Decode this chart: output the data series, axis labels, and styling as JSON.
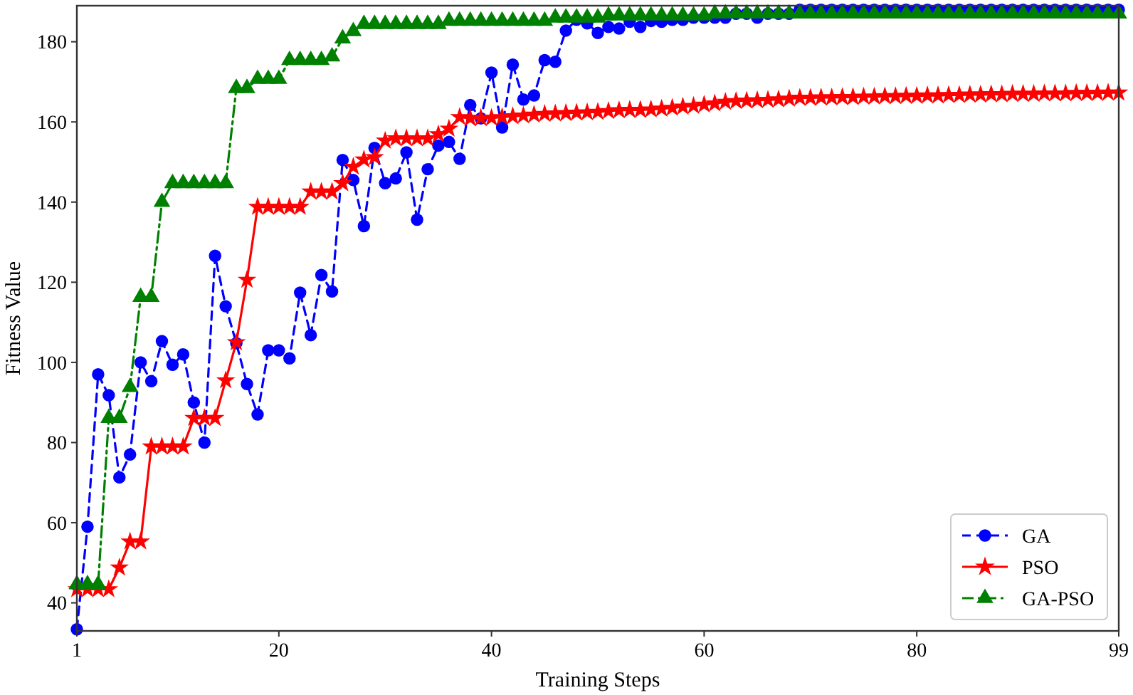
{
  "chart_data": {
    "type": "line",
    "xlabel": "Training Steps",
    "ylabel": "Fitness Value",
    "x": [
      1,
      2,
      3,
      4,
      5,
      6,
      7,
      8,
      9,
      10,
      11,
      12,
      13,
      14,
      15,
      16,
      17,
      18,
      19,
      20,
      21,
      22,
      23,
      24,
      25,
      26,
      27,
      28,
      29,
      30,
      31,
      32,
      33,
      34,
      35,
      36,
      37,
      38,
      39,
      40,
      41,
      42,
      43,
      44,
      45,
      46,
      47,
      48,
      49,
      50,
      51,
      52,
      53,
      54,
      55,
      56,
      57,
      58,
      59,
      60,
      61,
      62,
      63,
      64,
      65,
      66,
      67,
      68,
      69,
      70,
      71,
      72,
      73,
      74,
      75,
      76,
      77,
      78,
      79,
      80,
      81,
      82,
      83,
      84,
      85,
      86,
      87,
      88,
      89,
      90,
      91,
      92,
      93,
      94,
      95,
      96,
      97,
      98,
      99
    ],
    "series": [
      {
        "name": "GA",
        "color": "#0000ff",
        "marker": "circle",
        "line_style": "dashed",
        "values": [
          33.4,
          59,
          97,
          91.8,
          71.3,
          77,
          100,
          95.3,
          105.3,
          99.4,
          102,
          90,
          80,
          126.6,
          114,
          104.8,
          94.6,
          87,
          103,
          103,
          101,
          117.4,
          106.8,
          121.8,
          117.7,
          150.5,
          145.5,
          134,
          153.5,
          144.7,
          145.9,
          152.4,
          135.6,
          148.2,
          154.1,
          155,
          150.8,
          164.2,
          160.9,
          172.3,
          158.6,
          174.3,
          165.6,
          166.6,
          175.4,
          175,
          182.8,
          185.5,
          184.6,
          182.2,
          183.7,
          183.3,
          185,
          183.7,
          185.2,
          185,
          185.5,
          185.5,
          186,
          186,
          186,
          186,
          187,
          187,
          186,
          187,
          187,
          187,
          188,
          188,
          188,
          188,
          188,
          188,
          188,
          188,
          188,
          188,
          188,
          188,
          188,
          188,
          188,
          188,
          188,
          188,
          188,
          188,
          188,
          188,
          188,
          188,
          188,
          188,
          188,
          188,
          188,
          188,
          188
        ]
      },
      {
        "name": "PSO",
        "color": "#ff0000",
        "marker": "star",
        "line_style": "solid",
        "values": [
          43.4,
          43.4,
          43.4,
          43.4,
          48.8,
          55.3,
          55.3,
          79,
          79,
          79,
          79,
          86.1,
          86.1,
          86.1,
          95.5,
          105,
          120.6,
          138.8,
          138.8,
          138.8,
          138.8,
          138.8,
          142.6,
          142.6,
          142.6,
          144.7,
          148.8,
          150.6,
          151.2,
          155.3,
          155.9,
          155.9,
          155.9,
          155.9,
          156.9,
          158.3,
          161.2,
          160.9,
          161,
          161,
          161.2,
          161.4,
          161.6,
          161.8,
          162,
          162.1,
          162.2,
          162.3,
          162.4,
          162.5,
          162.7,
          162.9,
          163,
          163,
          163.1,
          163.3,
          163.5,
          163.8,
          164,
          164.3,
          164.6,
          165,
          165.2,
          165.3,
          165.4,
          165.5,
          165.6,
          165.8,
          166,
          166,
          166.1,
          166.1,
          166.2,
          166.2,
          166.3,
          166.3,
          166.4,
          166.4,
          166.5,
          166.5,
          166.6,
          166.6,
          166.7,
          166.7,
          166.8,
          166.8,
          166.9,
          166.9,
          167,
          167,
          167,
          167.1,
          167.1,
          167.1,
          167.2,
          167.2,
          167.2,
          167.3,
          167.3
        ]
      },
      {
        "name": "GA-PSO",
        "color": "#008000",
        "marker": "triangle",
        "line_style": "dashdot",
        "values": [
          44.6,
          44.6,
          44.6,
          86.1,
          86.1,
          93.8,
          116.3,
          116.3,
          140,
          144.7,
          144.7,
          144.7,
          144.7,
          144.7,
          144.7,
          168.4,
          168.4,
          170.7,
          170.7,
          170.7,
          175.4,
          175.4,
          175.4,
          175.4,
          176.3,
          180.8,
          182.6,
          184.4,
          184.4,
          184.4,
          184.4,
          184.4,
          184.4,
          184.4,
          184.4,
          185.2,
          185.2,
          185.2,
          185.2,
          185.2,
          185.2,
          185.2,
          185.2,
          185.2,
          185.2,
          186,
          186,
          186,
          186,
          186,
          186.5,
          186.5,
          186.5,
          186.5,
          186.5,
          186.5,
          186.5,
          186.5,
          186.5,
          186.5,
          187,
          187,
          187,
          187,
          187,
          187,
          187,
          187,
          187,
          187,
          187,
          187,
          187,
          187,
          187,
          187,
          187,
          187,
          187,
          187,
          187,
          187,
          187,
          187,
          187,
          187,
          187,
          187,
          187,
          187,
          187,
          187,
          187,
          187,
          187,
          187,
          187,
          187,
          187
        ]
      }
    ],
    "xlim": [
      1,
      99
    ],
    "xticks": [
      1,
      20,
      40,
      60,
      80,
      99
    ],
    "ylim": [
      33,
      189
    ],
    "yticks": [
      40,
      60,
      80,
      100,
      120,
      140,
      160,
      180
    ],
    "legend": "bottom right"
  }
}
